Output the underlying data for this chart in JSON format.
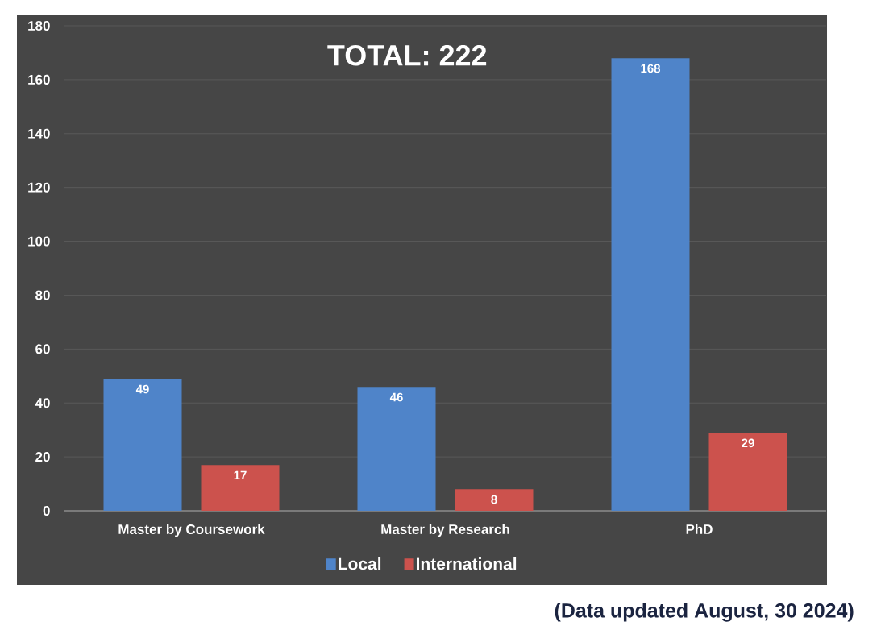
{
  "chart_data": {
    "type": "bar",
    "title": "TOTAL: 222",
    "categories": [
      "Master by Coursework",
      "Master by Research",
      "PhD"
    ],
    "series": [
      {
        "name": "Local",
        "color": "#4f84c9",
        "values": [
          49,
          46,
          168
        ]
      },
      {
        "name": "International",
        "color": "#cc524d",
        "values": [
          17,
          8,
          29
        ]
      }
    ],
    "ylim": [
      0,
      180
    ],
    "yticks": [
      0,
      20,
      40,
      60,
      80,
      100,
      120,
      140,
      160,
      180
    ],
    "grid": "y",
    "legend": "bottom",
    "data_labels": true,
    "annotations": [
      "(Data updated August, 30 2024)"
    ]
  }
}
